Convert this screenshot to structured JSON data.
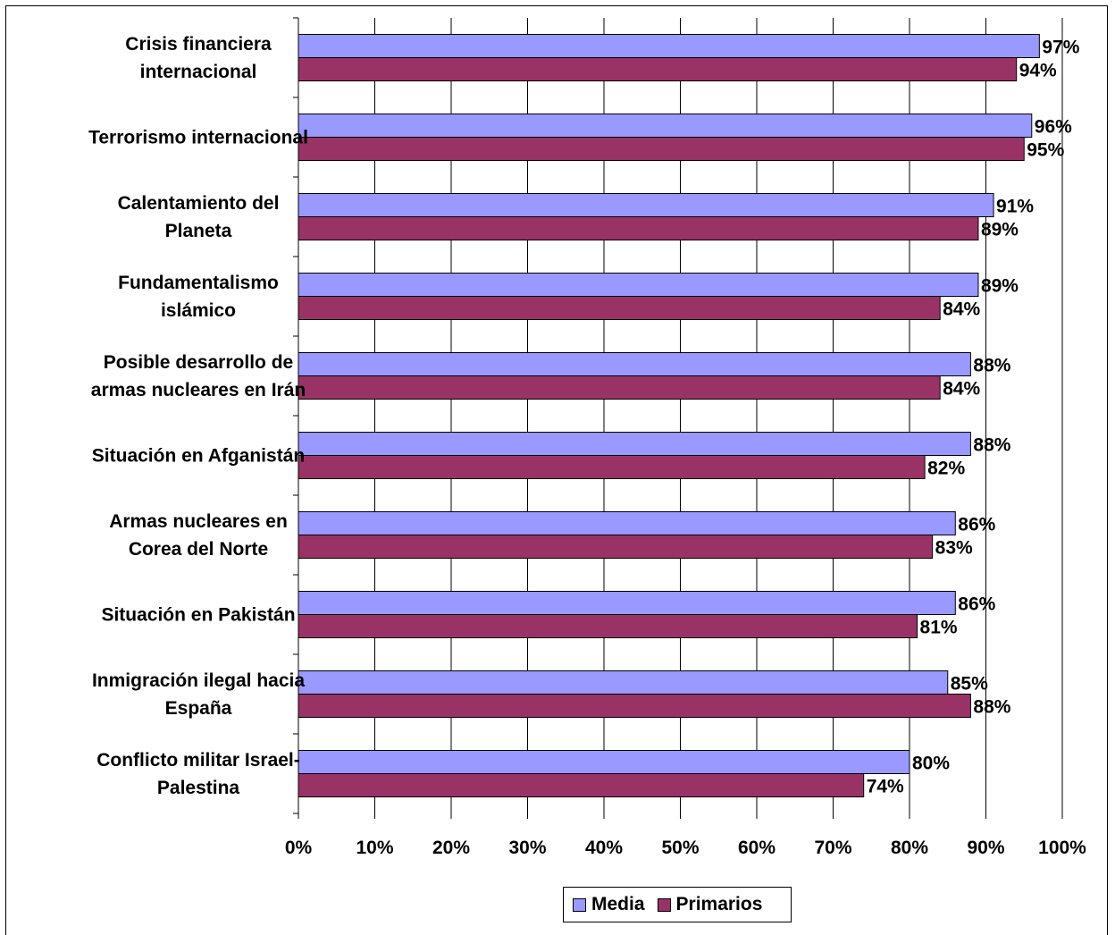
{
  "chart_data": {
    "type": "bar",
    "orientation": "horizontal",
    "categories": [
      "Crisis financiera internacional",
      "Terrorismo internacional",
      "Calentamiento del Planeta",
      "Fundamentalismo islámico",
      "Posible desarrollo de armas nucleares en Irán",
      "Situación en Afganistán",
      "Armas nucleares en Corea del Norte",
      "Situación en Pakistán",
      "Inmigración ilegal hacia España",
      "Conflicto militar Israel-Palestina"
    ],
    "category_label_lines": [
      [
        "Crisis financiera",
        "internacional"
      ],
      [
        "Terrorismo internacional"
      ],
      [
        "Calentamiento del",
        "Planeta"
      ],
      [
        "Fundamentalismo",
        "islámico"
      ],
      [
        "Posible desarrollo de",
        "armas nucleares en Irán"
      ],
      [
        "Situación en Afganistán"
      ],
      [
        "Armas nucleares en",
        "Corea del Norte"
      ],
      [
        "Situación en Pakistán"
      ],
      [
        "Inmigración ilegal hacia",
        "España"
      ],
      [
        "Conflicto militar Israel-",
        "Palestina"
      ]
    ],
    "series": [
      {
        "name": "Media",
        "color": "#9999ff",
        "values": [
          97,
          96,
          91,
          89,
          88,
          88,
          86,
          86,
          85,
          80
        ],
        "labels": [
          "97%",
          "96%",
          "91%",
          "89%",
          "88%",
          "88%",
          "86%",
          "86%",
          "85%",
          "80%"
        ]
      },
      {
        "name": "Primarios",
        "color": "#993366",
        "values": [
          94,
          95,
          89,
          84,
          84,
          82,
          83,
          81,
          88,
          74
        ],
        "labels": [
          "94%",
          "95%",
          "89%",
          "84%",
          "84%",
          "82%",
          "83%",
          "81%",
          "88%",
          "74%"
        ]
      }
    ],
    "xlim": [
      0,
      100
    ],
    "x_ticks": [
      "0%",
      "10%",
      "20%",
      "30%",
      "40%",
      "50%",
      "60%",
      "70%",
      "80%",
      "90%",
      "100%"
    ],
    "grid": true,
    "legend_position": "bottom"
  }
}
